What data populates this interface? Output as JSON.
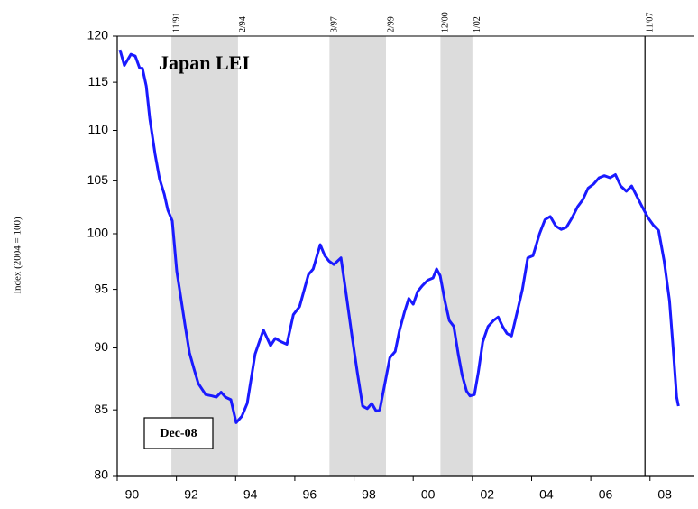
{
  "chart_data": {
    "type": "line",
    "title": "Japan LEI",
    "date_label": "Dec-08",
    "y_label": "Index (2004 = 100)",
    "log_scale": true,
    "xlim": [
      1990,
      2009.5
    ],
    "ylim": [
      80,
      120
    ],
    "yticks": [
      80,
      85,
      90,
      95,
      100,
      105,
      110,
      115,
      120
    ],
    "xticks": [
      {
        "value": 1990,
        "label": "90"
      },
      {
        "value": 1992,
        "label": "92"
      },
      {
        "value": 1994,
        "label": "94"
      },
      {
        "value": 1996,
        "label": "96"
      },
      {
        "value": 1998,
        "label": "98"
      },
      {
        "value": 2000,
        "label": "00"
      },
      {
        "value": 2002,
        "label": "02"
      },
      {
        "value": 2004,
        "label": "04"
      },
      {
        "value": 2006,
        "label": "06"
      },
      {
        "value": 2008,
        "label": "08"
      }
    ],
    "shade_color": "#dcdcdc",
    "recessions": [
      {
        "start": 1991.83,
        "end": 1994.08,
        "start_label": "11/91",
        "end_label": "2/94"
      },
      {
        "start": 1997.17,
        "end": 1999.08,
        "start_label": "3/97",
        "end_label": "2/99"
      },
      {
        "start": 2000.92,
        "end": 2002.0,
        "start_label": "12/00",
        "end_label": "1/02"
      }
    ],
    "marker": {
      "x": 2007.83,
      "label": "11/07"
    },
    "series": [
      {
        "name": "Japan LEI",
        "color": "#1a1aff",
        "x": [
          1990.09,
          1990.24,
          1990.46,
          1990.61,
          1990.76,
          1990.85,
          1990.98,
          1991.1,
          1991.28,
          1991.43,
          1991.59,
          1991.71,
          1991.86,
          1992.01,
          1992.13,
          1992.29,
          1992.44,
          1992.59,
          1992.74,
          1992.99,
          1993.2,
          1993.35,
          1993.51,
          1993.66,
          1993.84,
          1994.02,
          1994.21,
          1994.39,
          1994.66,
          1994.94,
          1995.18,
          1995.34,
          1995.55,
          1995.73,
          1995.95,
          1996.16,
          1996.46,
          1996.62,
          1996.86,
          1997.01,
          1997.16,
          1997.32,
          1997.56,
          1997.74,
          1997.93,
          1998.11,
          1998.29,
          1998.45,
          1998.6,
          1998.75,
          1998.87,
          1999.02,
          1999.21,
          1999.39,
          1999.54,
          1999.7,
          1999.85,
          2000.0,
          2000.15,
          2000.3,
          2000.49,
          2000.67,
          2000.79,
          2000.91,
          2001.07,
          2001.22,
          2001.37,
          2001.52,
          2001.65,
          2001.8,
          2001.92,
          2002.07,
          2002.2,
          2002.35,
          2002.53,
          2002.71,
          2002.87,
          2003.02,
          2003.17,
          2003.32,
          2003.51,
          2003.69,
          2003.87,
          2004.05,
          2004.27,
          2004.45,
          2004.63,
          2004.82,
          2005.0,
          2005.18,
          2005.37,
          2005.55,
          2005.73,
          2005.91,
          2006.1,
          2006.28,
          2006.46,
          2006.65,
          2006.83,
          2007.01,
          2007.2,
          2007.38,
          2007.56,
          2007.74,
          2007.93,
          2008.11,
          2008.29,
          2008.48,
          2008.66,
          2008.78,
          2008.9,
          2008.96
        ],
        "values": [
          118.5,
          116.8,
          118.0,
          117.8,
          116.5,
          116.5,
          114.6,
          111.2,
          107.6,
          105.2,
          103.7,
          102.2,
          101.2,
          96.6,
          94.6,
          91.9,
          89.6,
          88.3,
          87.1,
          86.2,
          86.1,
          86.0,
          86.4,
          86.0,
          85.8,
          84.0,
          84.5,
          85.5,
          89.5,
          91.5,
          90.2,
          90.8,
          90.5,
          90.3,
          92.8,
          93.5,
          96.3,
          96.8,
          99.0,
          98.0,
          97.5,
          97.2,
          97.8,
          94.5,
          91.0,
          88.0,
          85.3,
          85.1,
          85.5,
          84.9,
          85.0,
          86.8,
          89.2,
          89.7,
          91.5,
          93.0,
          94.2,
          93.7,
          94.8,
          95.3,
          95.8,
          96.0,
          96.8,
          96.2,
          94.0,
          92.3,
          91.8,
          89.5,
          87.8,
          86.5,
          86.1,
          86.2,
          88.0,
          90.5,
          91.8,
          92.3,
          92.6,
          91.8,
          91.2,
          91.0,
          93.0,
          95.0,
          97.8,
          98.0,
          100.0,
          101.3,
          101.6,
          100.7,
          100.4,
          100.6,
          101.5,
          102.5,
          103.2,
          104.3,
          104.7,
          105.3,
          105.5,
          105.3,
          105.6,
          104.5,
          104.0,
          104.5,
          103.5,
          102.5,
          101.5,
          100.8,
          100.3,
          97.5,
          94.0,
          90.0,
          86.0,
          85.3
        ]
      }
    ]
  }
}
